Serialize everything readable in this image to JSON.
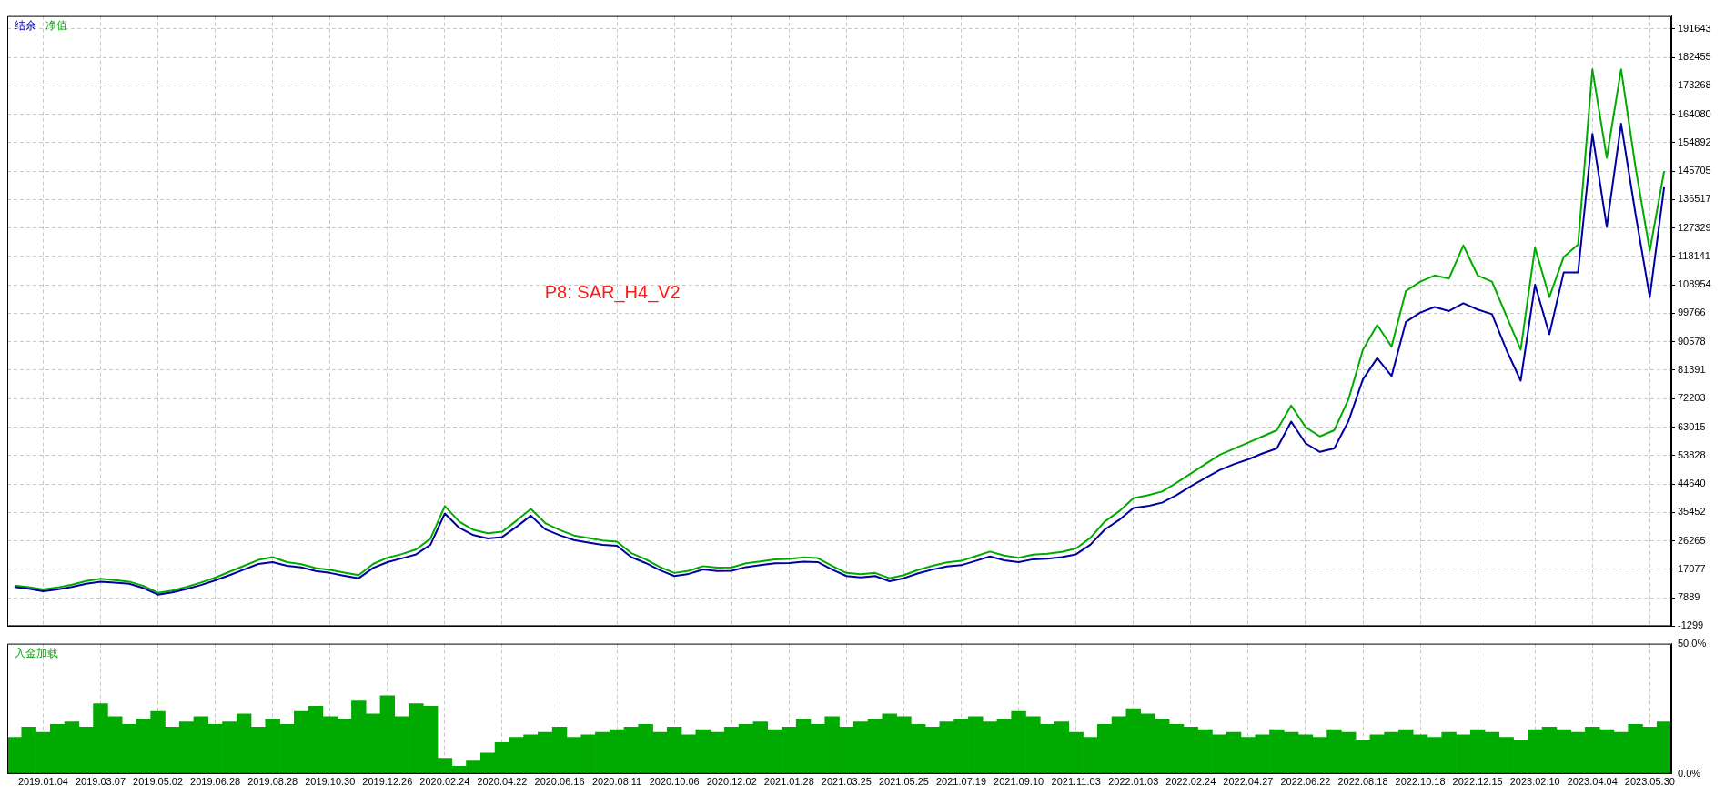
{
  "chart_data": [
    {
      "type": "line",
      "legend": "top left",
      "grid": true,
      "tick_labels": "y",
      "marker": "none",
      "annotations": [
        "P8: SAR_H4_V2"
      ],
      "categories": [
        null,
        null,
        "2019.01.04",
        null,
        null,
        null,
        "2019.03.07",
        null,
        null,
        null,
        "2019.05.02",
        null,
        null,
        null,
        "2019.06.28",
        null,
        null,
        null,
        "2019.08.28",
        null,
        null,
        null,
        "2019.10.30",
        null,
        null,
        null,
        "2019.12.26",
        null,
        null,
        null,
        "2020.02.24",
        null,
        null,
        null,
        "2020.04.22",
        null,
        null,
        null,
        "2020.06.16",
        null,
        null,
        null,
        "2020.08.11",
        null,
        null,
        null,
        "2020.10.06",
        null,
        null,
        null,
        "2020.12.02",
        null,
        null,
        null,
        "2021.01.28",
        null,
        null,
        null,
        "2021.03.25",
        null,
        null,
        null,
        "2021.05.25",
        null,
        null,
        null,
        "2021.07.19",
        null,
        null,
        null,
        "2021.09.10",
        null,
        null,
        null,
        "2021.11.03",
        null,
        null,
        null,
        "2022.01.03",
        null,
        null,
        null,
        "2022.02.24",
        null,
        null,
        null,
        "2022.04.27",
        null,
        null,
        null,
        "2022.06.22",
        null,
        null,
        null,
        "2022.08.18",
        null,
        null,
        null,
        "2022.10.18",
        null,
        null,
        null,
        "2022.12.15",
        null,
        null,
        null,
        "2023.02.10",
        null,
        null,
        null,
        "2023.04.04",
        null,
        null,
        null,
        "2023.05.30",
        null
      ],
      "ylim": [
        -1299,
        195800
      ],
      "yticks": [
        -1299,
        7889,
        17077,
        26265,
        35452,
        44640,
        53828,
        63015,
        72203,
        81391,
        90578,
        99766,
        108954,
        118141,
        127329,
        136517,
        145705,
        154892,
        164080,
        173268,
        182455,
        191643
      ],
      "series": [
        {
          "name": "结余",
          "color": "#0000a0",
          "values": [
            11400,
            10800,
            10000,
            10600,
            11400,
            12400,
            13100,
            12800,
            12400,
            11000,
            8900,
            9600,
            10700,
            12000,
            13500,
            15200,
            17000,
            18800,
            19400,
            18200,
            17700,
            16500,
            15900,
            15000,
            14200,
            17500,
            19400,
            20600,
            21900,
            25000,
            35100,
            30500,
            28100,
            27000,
            27500,
            30800,
            34400,
            30000,
            28100,
            26500,
            25700,
            25000,
            24700,
            21000,
            19100,
            16800,
            14900,
            15600,
            17000,
            16500,
            16600,
            17800,
            18400,
            19000,
            19100,
            19500,
            19400,
            17000,
            14900,
            14500,
            14900,
            13200,
            14200,
            15800,
            17000,
            18000,
            18400,
            19800,
            21200,
            20000,
            19400,
            20300,
            20500,
            21000,
            21900,
            25000,
            29900,
            33000,
            36900,
            37500,
            38600,
            41000,
            43900,
            46500,
            49100,
            51000,
            52600,
            54500,
            56100,
            64800,
            57800,
            55000,
            56100,
            65000,
            78400,
            85300,
            79500,
            97000,
            100000,
            101800,
            100500,
            103000,
            101000,
            99500,
            88000,
            78000,
            109000,
            93000,
            113000,
            113000,
            157700,
            127700,
            161000,
            132000,
            105000,
            140500
          ]
        },
        {
          "name": "净值",
          "color": "#00aa00",
          "values": [
            11800,
            11300,
            10600,
            11200,
            12100,
            13300,
            14000,
            13600,
            13100,
            11700,
            9500,
            10200,
            11400,
            12800,
            14400,
            16300,
            18200,
            20100,
            21000,
            19400,
            18700,
            17500,
            16900,
            16000,
            15200,
            18800,
            20800,
            22000,
            23500,
            27000,
            37500,
            32500,
            29800,
            28700,
            29200,
            32800,
            36600,
            32000,
            29800,
            28000,
            27200,
            26400,
            26000,
            22300,
            20300,
            17800,
            15900,
            16600,
            18100,
            17600,
            17700,
            19000,
            19600,
            20300,
            20400,
            20900,
            20700,
            18200,
            15900,
            15500,
            15900,
            14200,
            15200,
            16900,
            18200,
            19300,
            19800,
            21300,
            22800,
            21500,
            20800,
            21800,
            22100,
            22700,
            23800,
            27200,
            32500,
            35800,
            40000,
            41000,
            42200,
            45000,
            48000,
            51000,
            54000,
            56000,
            58000,
            60000,
            62000,
            70000,
            63000,
            60000,
            62000,
            72000,
            88000,
            96000,
            89000,
            107000,
            110000,
            112000,
            111000,
            121700,
            112000,
            110000,
            99000,
            88000,
            121000,
            105000,
            118000,
            122000,
            178600,
            150000,
            178600,
            147000,
            120000,
            145700
          ]
        }
      ]
    },
    {
      "type": "bar",
      "legend": "top left",
      "grid": "x",
      "categories": [
        null,
        null,
        "2019.01.04",
        null,
        null,
        null,
        "2019.03.07",
        null,
        null,
        null,
        "2019.05.02",
        null,
        null,
        null,
        "2019.06.28",
        null,
        null,
        null,
        "2019.08.28",
        null,
        null,
        null,
        "2019.10.30",
        null,
        null,
        null,
        "2019.12.26",
        null,
        null,
        null,
        "2020.02.24",
        null,
        null,
        null,
        "2020.04.22",
        null,
        null,
        null,
        "2020.06.16",
        null,
        null,
        null,
        "2020.08.11",
        null,
        null,
        null,
        "2020.10.06",
        null,
        null,
        null,
        "2020.12.02",
        null,
        null,
        null,
        "2021.01.28",
        null,
        null,
        null,
        "2021.03.25",
        null,
        null,
        null,
        "2021.05.25",
        null,
        null,
        null,
        "2021.07.19",
        null,
        null,
        null,
        "2021.09.10",
        null,
        null,
        null,
        "2021.11.03",
        null,
        null,
        null,
        "2022.01.03",
        null,
        null,
        null,
        "2022.02.24",
        null,
        null,
        null,
        "2022.04.27",
        null,
        null,
        null,
        "2022.06.22",
        null,
        null,
        null,
        "2022.08.18",
        null,
        null,
        null,
        "2022.10.18",
        null,
        null,
        null,
        "2022.12.15",
        null,
        null,
        null,
        "2023.02.10",
        null,
        null,
        null,
        "2023.04.04",
        null,
        null,
        null,
        "2023.05.30",
        null
      ],
      "ylim": [
        0,
        50
      ],
      "yticks": [
        {
          "value": 0,
          "label": "0.0%"
        },
        {
          "value": 50,
          "label": "50.0%"
        }
      ],
      "series": [
        {
          "name": "入金加载",
          "color": "#00aa00",
          "values": [
            14,
            18,
            16,
            19,
            20,
            18,
            27,
            22,
            19,
            21,
            24,
            18,
            20,
            22,
            19,
            20,
            23,
            18,
            21,
            19,
            24,
            26,
            22,
            21,
            28,
            23,
            30,
            22,
            27,
            26,
            6,
            3,
            5,
            8,
            12,
            14,
            15,
            16,
            18,
            14,
            15,
            16,
            17,
            18,
            19,
            16,
            18,
            15,
            17,
            16,
            18,
            19,
            20,
            17,
            18,
            21,
            19,
            22,
            18,
            20,
            21,
            23,
            22,
            19,
            18,
            20,
            21,
            22,
            20,
            21,
            24,
            22,
            19,
            20,
            16,
            14,
            19,
            22,
            25,
            23,
            21,
            19,
            18,
            17,
            15,
            16,
            14,
            15,
            17,
            16,
            15,
            14,
            17,
            16,
            13,
            15,
            16,
            17,
            15,
            14,
            16,
            15,
            17,
            16,
            14,
            13,
            17,
            18,
            17,
            16,
            18,
            17,
            16,
            19,
            18,
            20
          ]
        }
      ]
    }
  ]
}
